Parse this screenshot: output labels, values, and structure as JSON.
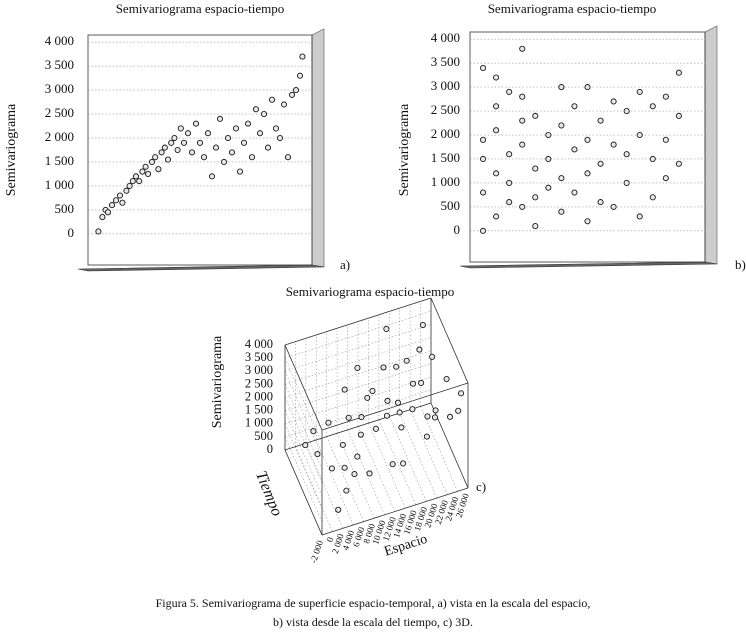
{
  "chart_data": [
    {
      "type": "scatter",
      "title": "Semivariograma espacio-tiempo",
      "y_label": "Semivariograma",
      "panel_label": "a)",
      "xlim": [
        -1000,
        27000
      ],
      "ylim": [
        -650,
        4150
      ],
      "yticks": [
        0,
        500,
        {
          "value": 1000,
          "label": "1 000"
        },
        {
          "value": 1500,
          "label": "1 500"
        },
        {
          "value": 2000,
          "label": "2 000"
        },
        {
          "value": 2500,
          "label": "2 500"
        },
        {
          "value": 3000,
          "label": "3 000"
        },
        {
          "value": 3500,
          "label": "3 500"
        },
        {
          "value": 4000,
          "label": "4 000"
        }
      ],
      "grid": true,
      "points": [
        [
          300,
          50
        ],
        [
          800,
          350
        ],
        [
          1200,
          500
        ],
        [
          1500,
          450
        ],
        [
          2000,
          600
        ],
        [
          2500,
          700
        ],
        [
          3000,
          800
        ],
        [
          3300,
          650
        ],
        [
          3800,
          900
        ],
        [
          4200,
          1000
        ],
        [
          4600,
          1100
        ],
        [
          5000,
          1200
        ],
        [
          5400,
          1100
        ],
        [
          5800,
          1300
        ],
        [
          6200,
          1400
        ],
        [
          6500,
          1250
        ],
        [
          7000,
          1500
        ],
        [
          7400,
          1600
        ],
        [
          7800,
          1350
        ],
        [
          8200,
          1700
        ],
        [
          8600,
          1800
        ],
        [
          9000,
          1550
        ],
        [
          9400,
          1900
        ],
        [
          9800,
          2000
        ],
        [
          10200,
          1750
        ],
        [
          10600,
          2200
        ],
        [
          11000,
          1900
        ],
        [
          11500,
          2100
        ],
        [
          12000,
          1700
        ],
        [
          12500,
          2300
        ],
        [
          13000,
          1900
        ],
        [
          13500,
          1600
        ],
        [
          14000,
          2100
        ],
        [
          14500,
          1200
        ],
        [
          15000,
          1800
        ],
        [
          15500,
          2400
        ],
        [
          16000,
          1500
        ],
        [
          16500,
          2000
        ],
        [
          17000,
          1700
        ],
        [
          17500,
          2200
        ],
        [
          18000,
          1300
        ],
        [
          18500,
          1900
        ],
        [
          19000,
          2300
        ],
        [
          19500,
          1600
        ],
        [
          20000,
          2600
        ],
        [
          20500,
          2100
        ],
        [
          21000,
          2500
        ],
        [
          21500,
          1800
        ],
        [
          22000,
          2800
        ],
        [
          22500,
          2200
        ],
        [
          23000,
          2000
        ],
        [
          23500,
          2700
        ],
        [
          24000,
          1600
        ],
        [
          24500,
          2900
        ],
        [
          25000,
          3000
        ],
        [
          25500,
          3300
        ],
        [
          25800,
          3700
        ]
      ]
    },
    {
      "type": "scatter",
      "title": "Semivariograma espacio-tiempo",
      "y_label": "Semivariograma",
      "panel_label": "b)",
      "xlim": [
        -1,
        17
      ],
      "ylim": [
        -650,
        4150
      ],
      "yticks": [
        0,
        500,
        {
          "value": 1000,
          "label": "1 000"
        },
        {
          "value": 1500,
          "label": "1 500"
        },
        {
          "value": 2000,
          "label": "2 000"
        },
        {
          "value": 2500,
          "label": "2 500"
        },
        {
          "value": 3000,
          "label": "3 000"
        },
        {
          "value": 3500,
          "label": "3 500"
        },
        {
          "value": 4000,
          "label": "4 000"
        }
      ],
      "grid": true,
      "points": [
        [
          0,
          3400
        ],
        [
          0,
          1900
        ],
        [
          0,
          1500
        ],
        [
          0,
          800
        ],
        [
          0,
          0
        ],
        [
          1,
          3200
        ],
        [
          1,
          2600
        ],
        [
          1,
          2100
        ],
        [
          1,
          1200
        ],
        [
          1,
          300
        ],
        [
          2,
          2900
        ],
        [
          2,
          1600
        ],
        [
          2,
          1000
        ],
        [
          2,
          600
        ],
        [
          3,
          3800
        ],
        [
          3,
          2800
        ],
        [
          3,
          2300
        ],
        [
          3,
          1800
        ],
        [
          3,
          500
        ],
        [
          4,
          2400
        ],
        [
          4,
          1300
        ],
        [
          4,
          700
        ],
        [
          4,
          100
        ],
        [
          5,
          2000
        ],
        [
          5,
          1500
        ],
        [
          5,
          900
        ],
        [
          6,
          3000
        ],
        [
          6,
          2200
        ],
        [
          6,
          1100
        ],
        [
          6,
          400
        ],
        [
          7,
          2600
        ],
        [
          7,
          1700
        ],
        [
          7,
          800
        ],
        [
          8,
          3000
        ],
        [
          8,
          1900
        ],
        [
          8,
          1200
        ],
        [
          8,
          200
        ],
        [
          9,
          2300
        ],
        [
          9,
          1400
        ],
        [
          9,
          600
        ],
        [
          10,
          2700
        ],
        [
          10,
          1800
        ],
        [
          10,
          500
        ],
        [
          11,
          2500
        ],
        [
          11,
          1600
        ],
        [
          11,
          1000
        ],
        [
          12,
          2900
        ],
        [
          12,
          2000
        ],
        [
          12,
          300
        ],
        [
          13,
          2600
        ],
        [
          13,
          1500
        ],
        [
          13,
          700
        ],
        [
          14,
          2800
        ],
        [
          14,
          1900
        ],
        [
          14,
          1100
        ],
        [
          15,
          3300
        ],
        [
          15,
          2400
        ],
        [
          15,
          1400
        ]
      ]
    },
    {
      "type": "scatter3d",
      "title": "Semivariograma espacio-tiempo",
      "z_label": "Semivariograma",
      "x_label": "Espacio",
      "t_label": "Tiempo",
      "panel_label": "c)",
      "xlim": [
        -2000,
        26000
      ],
      "tlim": [
        0,
        16
      ],
      "zlim": [
        0,
        4000
      ],
      "xticks": [
        {
          "value": -2000,
          "label": "-2 000"
        },
        0,
        {
          "value": 2000,
          "label": "2 000"
        },
        {
          "value": 4000,
          "label": "4 000"
        },
        {
          "value": 6000,
          "label": "6 000"
        },
        {
          "value": 8000,
          "label": "8 000"
        },
        {
          "value": 10000,
          "label": "10 000"
        },
        {
          "value": 12000,
          "label": "12 000"
        },
        {
          "value": 14000,
          "label": "14 000"
        },
        {
          "value": 16000,
          "label": "16 000"
        },
        {
          "value": 18000,
          "label": "18 000"
        },
        {
          "value": 20000,
          "label": "20 000"
        },
        {
          "value": 22000,
          "label": "22 000"
        },
        {
          "value": 24000,
          "label": "24 000"
        },
        {
          "value": 26000,
          "label": "26 000"
        }
      ],
      "zticks": [
        0,
        500,
        {
          "value": 1000,
          "label": "1 000"
        },
        {
          "value": 1500,
          "label": "1 500"
        },
        {
          "value": 2000,
          "label": "2 000"
        },
        {
          "value": 2500,
          "label": "2 500"
        },
        {
          "value": 3000,
          "label": "3 000"
        },
        {
          "value": 3500,
          "label": "3 500"
        },
        {
          "value": 4000,
          "label": "4 000"
        }
      ],
      "points": [
        [
          1000,
          2,
          400
        ],
        [
          2000,
          5,
          600
        ],
        [
          3000,
          9,
          800
        ],
        [
          4000,
          13,
          700
        ],
        [
          5000,
          3,
          1200
        ],
        [
          6000,
          7,
          1100
        ],
        [
          7000,
          11,
          1400
        ],
        [
          8000,
          14,
          1300
        ],
        [
          9000,
          1,
          1800
        ],
        [
          10000,
          6,
          1700
        ],
        [
          11000,
          10,
          2000
        ],
        [
          12000,
          15,
          1600
        ],
        [
          13000,
          4,
          2100
        ],
        [
          14000,
          8,
          1900
        ],
        [
          15000,
          12,
          2200
        ],
        [
          16000,
          2,
          2400
        ],
        [
          17000,
          6,
          1800
        ],
        [
          18000,
          10,
          2300
        ],
        [
          19000,
          14,
          2000
        ],
        [
          20000,
          3,
          2600
        ],
        [
          21000,
          7,
          2500
        ],
        [
          22000,
          11,
          2200
        ],
        [
          23000,
          15,
          2700
        ],
        [
          24000,
          5,
          2900
        ],
        [
          25000,
          9,
          2800
        ],
        [
          26000,
          13,
          3000
        ],
        [
          3000,
          1,
          600
        ],
        [
          6000,
          12,
          1000
        ],
        [
          9000,
          8,
          1500
        ],
        [
          12000,
          4,
          1900
        ],
        [
          15000,
          6,
          2000
        ],
        [
          18000,
          3,
          2500
        ],
        [
          21000,
          13,
          2400
        ],
        [
          24000,
          1,
          3300
        ],
        [
          11000,
          2,
          2700
        ],
        [
          16000,
          9,
          2100
        ],
        [
          20000,
          12,
          2300
        ],
        [
          14000,
          15,
          1500
        ],
        [
          8000,
          5,
          1600
        ],
        [
          5000,
          10,
          900
        ],
        [
          22000,
          4,
          3100
        ],
        [
          19000,
          8,
          2800
        ],
        [
          25000,
          14,
          2600
        ],
        [
          17000,
          1,
          3600
        ],
        [
          2000,
          14,
          300
        ]
      ]
    }
  ],
  "caption": [
    "Figura 5. Semivariograma de superficie espacio-temporal, a) vista en la escala del espacio,",
    "b) vista desde la escala del tiempo, c) 3D."
  ]
}
